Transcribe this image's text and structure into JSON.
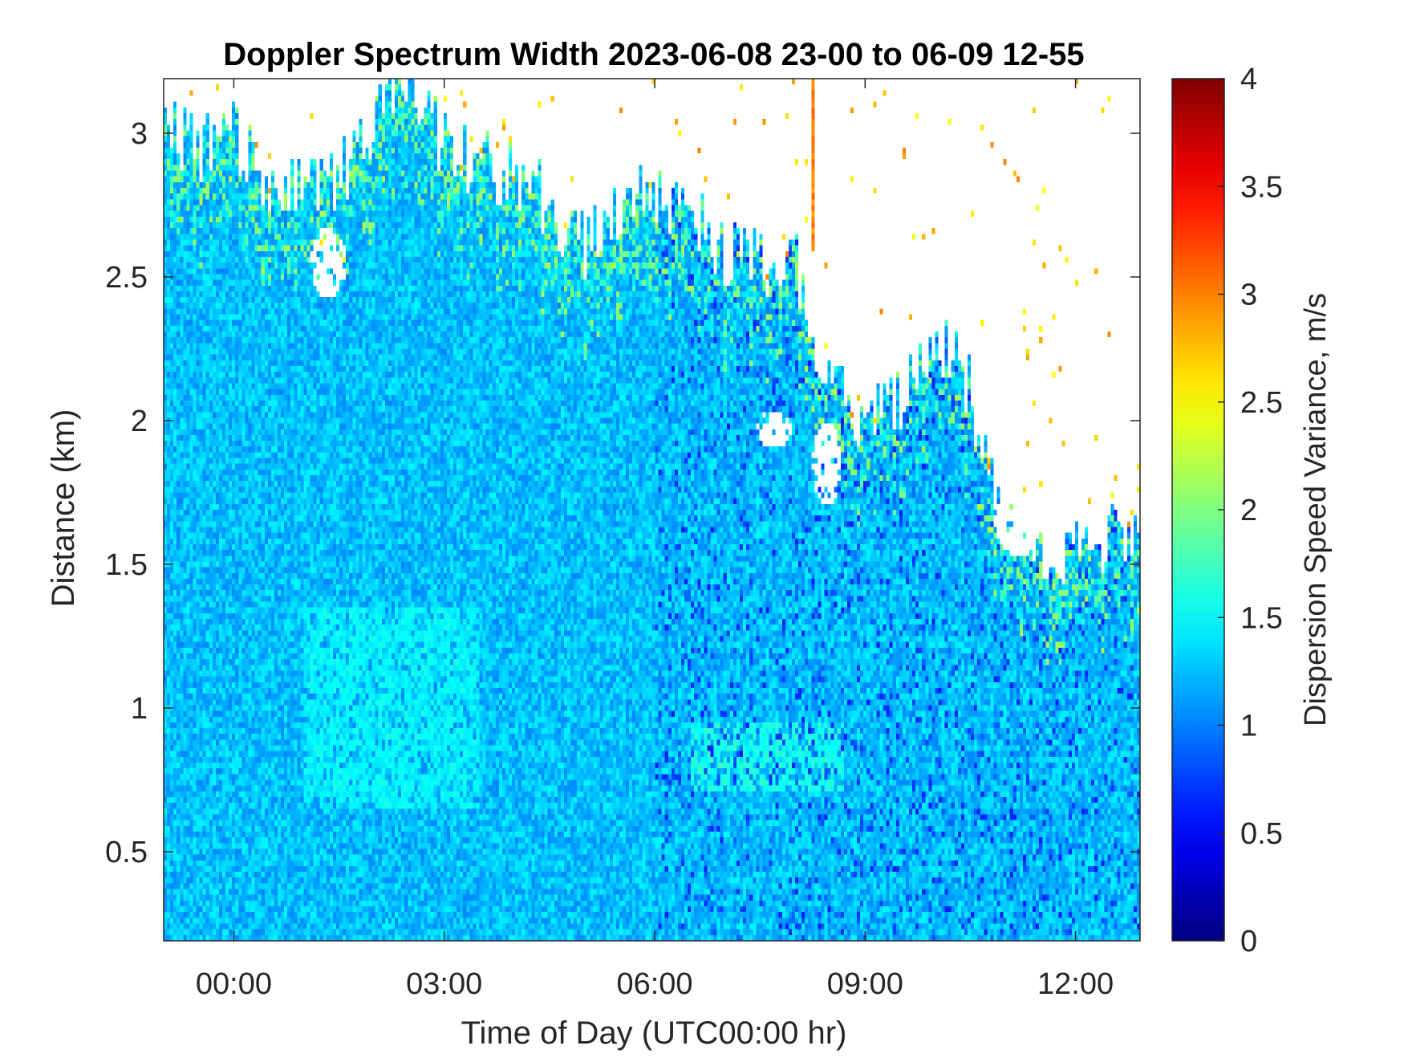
{
  "chart_data": {
    "type": "heatmap",
    "title": "Doppler Spectrum Width 2023-06-08 23-00 to 06-09 12-55",
    "xlabel": "Time of Day (UTC00:00 hr)",
    "ylabel": "Distance (km)",
    "colorbar_label": "Dispersion Speed Variance, m/s",
    "x_start": "2023-06-08 23:00",
    "x_end": "2023-06-09 12:55",
    "xlim_hours": [
      -1.0,
      12.92
    ],
    "ylim_km": [
      0.19,
      3.19
    ],
    "clim": [
      0,
      4
    ],
    "colormap": "jet",
    "x_ticks": [
      {
        "value": 0,
        "label": "00:00"
      },
      {
        "value": 3,
        "label": "03:00"
      },
      {
        "value": 6,
        "label": "06:00"
      },
      {
        "value": 9,
        "label": "09:00"
      },
      {
        "value": 12,
        "label": "12:00"
      }
    ],
    "y_ticks": [
      {
        "value": 0.5,
        "label": "0.5"
      },
      {
        "value": 1,
        "label": "1"
      },
      {
        "value": 1.5,
        "label": "1.5"
      },
      {
        "value": 2,
        "label": "2"
      },
      {
        "value": 2.5,
        "label": "2.5"
      },
      {
        "value": 3,
        "label": "3"
      }
    ],
    "colorbar_ticks": [
      {
        "value": 0,
        "label": "0"
      },
      {
        "value": 0.5,
        "label": "0.5"
      },
      {
        "value": 1,
        "label": "1"
      },
      {
        "value": 1.5,
        "label": "1.5"
      },
      {
        "value": 2,
        "label": "2"
      },
      {
        "value": 2.5,
        "label": "2.5"
      },
      {
        "value": 3,
        "label": "3"
      },
      {
        "value": 3.5,
        "label": "3.5"
      },
      {
        "value": 4,
        "label": "4"
      }
    ],
    "typical_value": 1.25,
    "signal_top_km": [
      {
        "hour": -1.0,
        "top": 3.05
      },
      {
        "hour": -0.5,
        "top": 2.95
      },
      {
        "hour": 0.0,
        "top": 3.0
      },
      {
        "hour": 0.5,
        "top": 2.85
      },
      {
        "hour": 1.0,
        "top": 2.8
      },
      {
        "hour": 1.5,
        "top": 2.85
      },
      {
        "hour": 2.0,
        "top": 3.05
      },
      {
        "hour": 2.5,
        "top": 3.19
      },
      {
        "hour": 3.0,
        "top": 2.95
      },
      {
        "hour": 3.5,
        "top": 2.9
      },
      {
        "hour": 4.0,
        "top": 2.85
      },
      {
        "hour": 4.5,
        "top": 2.75
      },
      {
        "hour": 5.0,
        "top": 2.6
      },
      {
        "hour": 5.5,
        "top": 2.75
      },
      {
        "hour": 6.0,
        "top": 2.78
      },
      {
        "hour": 6.5,
        "top": 2.7
      },
      {
        "hour": 7.0,
        "top": 2.6
      },
      {
        "hour": 7.5,
        "top": 2.55
      },
      {
        "hour": 8.0,
        "top": 2.55
      },
      {
        "hour": 8.3,
        "top": 2.3
      },
      {
        "hour": 8.6,
        "top": 2.1
      },
      {
        "hour": 9.0,
        "top": 2.0
      },
      {
        "hour": 9.5,
        "top": 2.05
      },
      {
        "hour": 10.0,
        "top": 2.3
      },
      {
        "hour": 10.5,
        "top": 2.1
      },
      {
        "hour": 11.0,
        "top": 1.6
      },
      {
        "hour": 11.5,
        "top": 1.5
      },
      {
        "hour": 12.0,
        "top": 1.55
      },
      {
        "hour": 12.5,
        "top": 1.6
      },
      {
        "hour": 12.92,
        "top": 1.6
      }
    ],
    "clear_patches": [
      {
        "hour_center": 1.35,
        "km_center": 2.55,
        "hour_radius": 0.25,
        "km_radius": 0.12
      },
      {
        "hour_center": 7.7,
        "km_center": 1.97,
        "hour_radius": 0.25,
        "km_radius": 0.07
      },
      {
        "hour_center": 8.45,
        "km_center": 1.85,
        "hour_radius": 0.2,
        "km_radius": 0.15
      },
      {
        "hour_center": 11.2,
        "km_center": 1.65,
        "hour_radius": 0.35,
        "km_radius": 0.12
      }
    ],
    "high_variance_streaks": [
      {
        "hour": 8.25,
        "km_min": 2.6,
        "km_max": 3.19,
        "value": 3.0
      }
    ],
    "enhanced_zones": [
      {
        "hour_min": 6.5,
        "hour_max": 8.7,
        "km_min": 0.7,
        "km_max": 0.95,
        "value": 1.6
      },
      {
        "hour_min": 1.0,
        "hour_max": 3.5,
        "km_min": 0.65,
        "km_max": 1.35,
        "value": 1.5
      }
    ]
  }
}
